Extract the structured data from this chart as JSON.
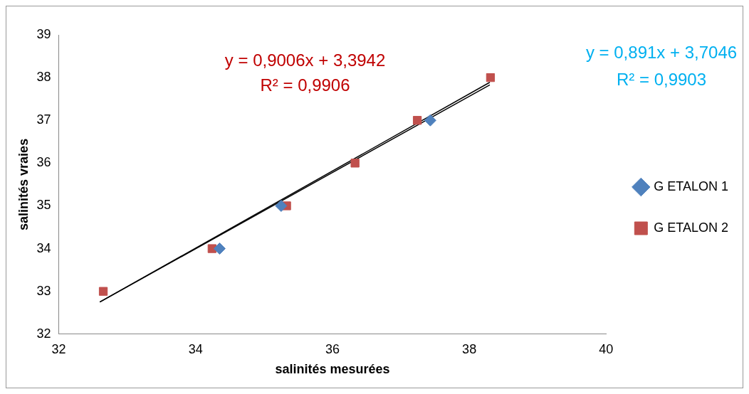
{
  "chart_data": {
    "type": "scatter",
    "xlabel": "salinités mesurées",
    "ylabel": "salinités vraies",
    "xlim": [
      32,
      40
    ],
    "xticks": [
      32,
      34,
      36,
      38,
      40
    ],
    "ylim": [
      32,
      39
    ],
    "yticks": [
      32,
      33,
      34,
      35,
      36,
      37,
      38,
      39
    ],
    "legend": "right",
    "annotations": [
      "y = 0,9006x + 3,3942",
      "R² = 0,9906",
      "y = 0,891x + 3,7046",
      "R² = 0,9903"
    ],
    "series": [
      {
        "name": "G ETALON 1",
        "color": "#4f81bd",
        "marker": "diamond",
        "x": [
          34.35,
          35.25,
          37.43
        ],
        "values": [
          34,
          35,
          37
        ]
      },
      {
        "name": "G ETALON 2",
        "color": "#c0504d",
        "marker": "square",
        "x": [
          32.65,
          34.24,
          35.33,
          36.33,
          37.24,
          38.31
        ],
        "values": [
          33,
          34,
          35,
          36,
          37,
          38
        ]
      },
      {
        "type": "line",
        "color": "#000000",
        "marker": "none",
        "x": [
          32.6,
          38.3
        ],
        "values": [
          32.75,
          37.83
        ]
      },
      {
        "type": "line",
        "color": "#000000",
        "marker": "none",
        "x": [
          32.6,
          38.3
        ],
        "values": [
          32.75,
          37.89
        ]
      }
    ]
  }
}
